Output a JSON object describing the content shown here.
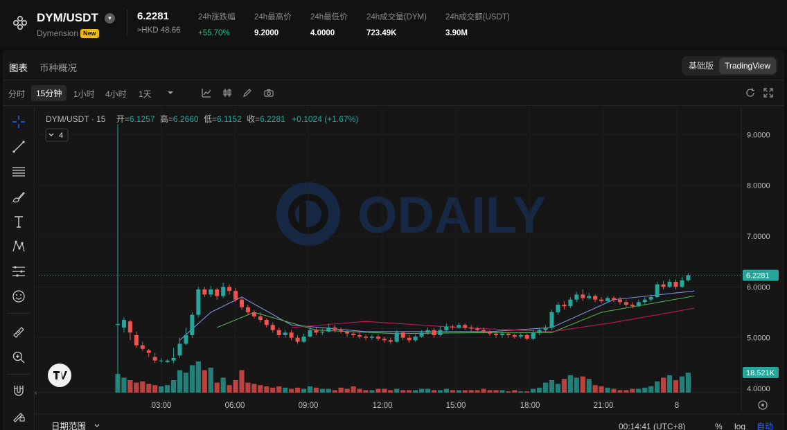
{
  "header": {
    "pair": "DYM/USDT",
    "project": "Dymension",
    "badge": "New",
    "price": "6.2281",
    "price_hkd": "≈HKD 48.66",
    "stats": [
      {
        "label": "24h涨跌幅",
        "value": "+55.70%"
      },
      {
        "label": "24h最高价",
        "value": "9.2000"
      },
      {
        "label": "24h最低价",
        "value": "4.0000"
      },
      {
        "label": "24h成交量(DYM)",
        "value": "723.49K"
      },
      {
        "label": "24h成交额(USDT)",
        "value": "3.90M"
      }
    ]
  },
  "tabs": {
    "chart": "图表",
    "overview": "币种概况"
  },
  "view_toggle": {
    "basic": "基础版",
    "tradingview": "TradingView"
  },
  "timeframes": [
    "分时",
    "15分钟",
    "1小时",
    "4小时",
    "1天"
  ],
  "legend": {
    "symbol": "DYM/USDT · 15",
    "open_label": "开=",
    "open": "6.1257",
    "high_label": "高=",
    "high": "6.2660",
    "low_label": "低=",
    "low": "6.1152",
    "close_label": "收=",
    "close": "6.2281",
    "change": "+0.1024 (+1.67%)",
    "indicators_count": "4"
  },
  "watermark": "ODAILY",
  "bottom": {
    "date_range": "日期范围",
    "time": "00:14:41 (UTC+8)",
    "pct": "%",
    "log": "log",
    "auto": "自动"
  },
  "colors": {
    "up": "#26a69a",
    "down": "#ef5350",
    "ma1": "#7e8fe0",
    "ma2": "#4caf50",
    "ma3": "#c2185b"
  },
  "chart_data": {
    "type": "candlestick",
    "symbol": "DYM/USDT",
    "interval": "15",
    "x_ticks": [
      "03:00",
      "06:00",
      "09:00",
      "12:00",
      "15:00",
      "18:00",
      "21:00",
      "8"
    ],
    "y_ticks": [
      4.0,
      5.0,
      6.0,
      7.0,
      8.0,
      9.0
    ],
    "y_tick_labels": [
      "4.0000",
      "5.0000",
      "6.0000",
      "7.0000",
      "8.0000",
      "9.0000"
    ],
    "ylim": [
      3.55,
      9.55
    ],
    "last_price": 6.2281,
    "last_price_label": "6.2281",
    "last_volume_label": "18.521K",
    "candles": [
      [
        5.25,
        5.27,
        9.2,
        4.0,
        1
      ],
      [
        5.2,
        5.35,
        5.4,
        5.1,
        1
      ],
      [
        5.32,
        5.1,
        5.35,
        4.95,
        0
      ],
      [
        5.05,
        4.85,
        5.12,
        4.8,
        0
      ],
      [
        4.85,
        4.78,
        4.92,
        4.74,
        0
      ],
      [
        4.75,
        4.7,
        4.78,
        4.62,
        0
      ],
      [
        4.62,
        4.55,
        4.7,
        4.5,
        0
      ],
      [
        4.55,
        4.55,
        4.6,
        4.5,
        1
      ],
      [
        4.52,
        4.55,
        4.58,
        4.5,
        1
      ],
      [
        4.55,
        4.6,
        4.8,
        4.5,
        1
      ],
      [
        4.65,
        4.88,
        5.0,
        4.6,
        1
      ],
      [
        4.88,
        5.05,
        5.2,
        4.85,
        1
      ],
      [
        5.05,
        5.45,
        5.5,
        5.0,
        1
      ],
      [
        5.45,
        5.95,
        6.0,
        5.4,
        1
      ],
      [
        5.95,
        5.85,
        6.0,
        5.8,
        0
      ],
      [
        5.85,
        5.95,
        6.02,
        5.8,
        1
      ],
      [
        5.95,
        5.82,
        5.98,
        5.75,
        0
      ],
      [
        5.82,
        6.0,
        6.08,
        5.78,
        1
      ],
      [
        6.0,
        5.92,
        6.05,
        5.85,
        0
      ],
      [
        5.92,
        5.75,
        5.98,
        5.7,
        0
      ],
      [
        5.75,
        5.6,
        5.8,
        5.55,
        0
      ],
      [
        5.6,
        5.5,
        5.65,
        5.45,
        0
      ],
      [
        5.5,
        5.42,
        5.55,
        5.38,
        0
      ],
      [
        5.42,
        5.35,
        5.5,
        5.3,
        0
      ],
      [
        5.35,
        5.25,
        5.38,
        5.2,
        0
      ],
      [
        5.25,
        5.15,
        5.3,
        5.1,
        0
      ],
      [
        5.15,
        5.05,
        5.2,
        5.0,
        0
      ],
      [
        5.05,
        5.1,
        5.15,
        5.0,
        1
      ],
      [
        5.1,
        5.0,
        5.15,
        4.95,
        0
      ],
      [
        5.0,
        4.92,
        5.05,
        4.88,
        0
      ],
      [
        4.92,
        5.02,
        5.08,
        4.9,
        1
      ],
      [
        5.02,
        5.15,
        5.2,
        5.0,
        1
      ],
      [
        5.15,
        5.1,
        5.2,
        5.05,
        0
      ],
      [
        5.1,
        5.12,
        5.18,
        5.05,
        1
      ],
      [
        5.12,
        5.2,
        5.28,
        5.1,
        1
      ],
      [
        5.2,
        5.15,
        5.25,
        5.1,
        0
      ],
      [
        5.15,
        5.12,
        5.2,
        5.08,
        0
      ],
      [
        5.12,
        5.08,
        5.15,
        5.02,
        0
      ],
      [
        5.08,
        5.05,
        5.12,
        5.0,
        0
      ],
      [
        5.05,
        5.02,
        5.1,
        4.98,
        0
      ],
      [
        5.02,
        5.0,
        5.06,
        4.95,
        0
      ],
      [
        5.0,
        5.02,
        5.06,
        4.96,
        1
      ],
      [
        5.02,
        4.98,
        5.06,
        4.94,
        0
      ],
      [
        4.98,
        4.95,
        5.02,
        4.9,
        0
      ],
      [
        4.95,
        4.92,
        5.0,
        4.88,
        0
      ],
      [
        4.92,
        5.1,
        5.15,
        4.9,
        1
      ],
      [
        5.1,
        5.0,
        5.12,
        4.95,
        0
      ],
      [
        5.0,
        4.95,
        5.05,
        4.9,
        0
      ],
      [
        4.95,
        5.02,
        5.06,
        4.92,
        1
      ],
      [
        5.02,
        5.1,
        5.15,
        5.0,
        1
      ],
      [
        5.1,
        5.15,
        5.2,
        5.05,
        1
      ],
      [
        5.15,
        5.05,
        5.18,
        5.0,
        0
      ],
      [
        5.05,
        5.15,
        5.22,
        5.02,
        1
      ],
      [
        5.15,
        5.22,
        5.28,
        5.1,
        1
      ],
      [
        5.22,
        5.2,
        5.26,
        5.15,
        0
      ],
      [
        5.2,
        5.25,
        5.3,
        5.18,
        1
      ],
      [
        5.25,
        5.2,
        5.28,
        5.15,
        0
      ],
      [
        5.2,
        5.18,
        5.25,
        5.12,
        0
      ],
      [
        5.18,
        5.15,
        5.22,
        5.1,
        0
      ],
      [
        5.15,
        5.12,
        5.2,
        5.08,
        0
      ],
      [
        5.12,
        5.08,
        5.15,
        5.04,
        0
      ],
      [
        5.08,
        5.05,
        5.12,
        5.0,
        0
      ],
      [
        5.05,
        5.08,
        5.12,
        5.0,
        1
      ],
      [
        5.08,
        5.05,
        5.1,
        5.0,
        0
      ],
      [
        5.05,
        5.02,
        5.08,
        4.98,
        0
      ],
      [
        5.02,
        5.05,
        5.1,
        4.98,
        1
      ],
      [
        5.05,
        4.98,
        5.08,
        4.95,
        0
      ],
      [
        4.98,
        5.1,
        5.15,
        4.95,
        1
      ],
      [
        5.1,
        5.15,
        5.2,
        5.05,
        1
      ],
      [
        5.15,
        5.2,
        5.25,
        5.1,
        1
      ],
      [
        5.2,
        5.5,
        5.55,
        5.15,
        1
      ],
      [
        5.5,
        5.65,
        5.7,
        5.45,
        1
      ],
      [
        5.65,
        5.62,
        5.72,
        5.55,
        0
      ],
      [
        5.62,
        5.75,
        5.8,
        5.58,
        1
      ],
      [
        5.75,
        5.85,
        5.9,
        5.7,
        1
      ],
      [
        5.85,
        5.78,
        5.95,
        5.72,
        0
      ],
      [
        5.78,
        5.82,
        5.88,
        5.75,
        1
      ],
      [
        5.82,
        5.75,
        5.85,
        5.7,
        0
      ],
      [
        5.75,
        5.72,
        5.8,
        5.68,
        0
      ],
      [
        5.72,
        5.78,
        5.82,
        5.68,
        1
      ],
      [
        5.78,
        5.75,
        5.82,
        5.7,
        0
      ],
      [
        5.75,
        5.7,
        5.8,
        5.65,
        0
      ],
      [
        5.7,
        5.65,
        5.75,
        5.6,
        0
      ],
      [
        5.65,
        5.62,
        5.7,
        5.58,
        0
      ],
      [
        5.62,
        5.7,
        5.75,
        5.6,
        1
      ],
      [
        5.7,
        5.75,
        5.8,
        5.66,
        1
      ],
      [
        5.75,
        5.8,
        5.85,
        5.72,
        1
      ],
      [
        5.8,
        6.05,
        6.1,
        5.78,
        1
      ],
      [
        6.05,
        6.0,
        6.12,
        5.95,
        0
      ],
      [
        6.0,
        6.1,
        6.15,
        5.98,
        1
      ],
      [
        6.1,
        6.0,
        6.15,
        5.95,
        0
      ],
      [
        6.0,
        6.13,
        6.2,
        5.98,
        1
      ],
      [
        6.13,
        6.23,
        6.27,
        6.1,
        1
      ]
    ],
    "volumes": [
      [
        15,
        1
      ],
      [
        12,
        1
      ],
      [
        10,
        0
      ],
      [
        8,
        0
      ],
      [
        9,
        0
      ],
      [
        7,
        0
      ],
      [
        6,
        0
      ],
      [
        5,
        1
      ],
      [
        6,
        1
      ],
      [
        10,
        1
      ],
      [
        18,
        1
      ],
      [
        16,
        1
      ],
      [
        22,
        1
      ],
      [
        25,
        1
      ],
      [
        18,
        0
      ],
      [
        20,
        1
      ],
      [
        8,
        0
      ],
      [
        12,
        1
      ],
      [
        6,
        0
      ],
      [
        10,
        0
      ],
      [
        18,
        0
      ],
      [
        8,
        0
      ],
      [
        7,
        0
      ],
      [
        6,
        0
      ],
      [
        5,
        0
      ],
      [
        4,
        0
      ],
      [
        5,
        0
      ],
      [
        4,
        1
      ],
      [
        3,
        0
      ],
      [
        4,
        0
      ],
      [
        3,
        1
      ],
      [
        5,
        1
      ],
      [
        4,
        0
      ],
      [
        3,
        1
      ],
      [
        3,
        1
      ],
      [
        2,
        0
      ],
      [
        4,
        0
      ],
      [
        3,
        0
      ],
      [
        5,
        0
      ],
      [
        3,
        0
      ],
      [
        2,
        0
      ],
      [
        2,
        1
      ],
      [
        3,
        0
      ],
      [
        3,
        0
      ],
      [
        2,
        0
      ],
      [
        3,
        1
      ],
      [
        2,
        0
      ],
      [
        2,
        0
      ],
      [
        2,
        1
      ],
      [
        3,
        1
      ],
      [
        3,
        1
      ],
      [
        2,
        0
      ],
      [
        2,
        1
      ],
      [
        3,
        1
      ],
      [
        2,
        0
      ],
      [
        2,
        1
      ],
      [
        2,
        0
      ],
      [
        2,
        0
      ],
      [
        2,
        0
      ],
      [
        3,
        0
      ],
      [
        2,
        0
      ],
      [
        2,
        0
      ],
      [
        2,
        1
      ],
      [
        1,
        0
      ],
      [
        2,
        0
      ],
      [
        1,
        1
      ],
      [
        1,
        0
      ],
      [
        3,
        1
      ],
      [
        4,
        1
      ],
      [
        8,
        1
      ],
      [
        10,
        1
      ],
      [
        7,
        1
      ],
      [
        11,
        0
      ],
      [
        14,
        1
      ],
      [
        12,
        1
      ],
      [
        13,
        0
      ],
      [
        11,
        1
      ],
      [
        6,
        0
      ],
      [
        5,
        0
      ],
      [
        4,
        1
      ],
      [
        3,
        0
      ],
      [
        2,
        0
      ],
      [
        2,
        0
      ],
      [
        3,
        0
      ],
      [
        3,
        1
      ],
      [
        4,
        1
      ],
      [
        5,
        1
      ],
      [
        9,
        1
      ],
      [
        12,
        0
      ],
      [
        14,
        1
      ],
      [
        10,
        0
      ],
      [
        13,
        1
      ],
      [
        16,
        1
      ]
    ],
    "ma_series": [
      {
        "color": "#7e8fe0",
        "points": [
          [
            10,
            4.95
          ],
          [
            15,
            5.5
          ],
          [
            20,
            5.8
          ],
          [
            28,
            5.25
          ],
          [
            40,
            5.12
          ],
          [
            60,
            5.12
          ],
          [
            70,
            5.2
          ],
          [
            80,
            5.75
          ],
          [
            93,
            5.92
          ]
        ]
      },
      {
        "color": "#4caf50",
        "points": [
          [
            16,
            5.2
          ],
          [
            22,
            5.5
          ],
          [
            32,
            5.15
          ],
          [
            45,
            5.08
          ],
          [
            60,
            5.1
          ],
          [
            70,
            5.1
          ],
          [
            78,
            5.5
          ],
          [
            93,
            5.82
          ]
        ]
      },
      {
        "color": "#c2185b",
        "points": [
          [
            28,
            5.2
          ],
          [
            40,
            5.32
          ],
          [
            55,
            5.2
          ],
          [
            70,
            5.12
          ],
          [
            80,
            5.3
          ],
          [
            93,
            5.58
          ]
        ]
      }
    ]
  }
}
